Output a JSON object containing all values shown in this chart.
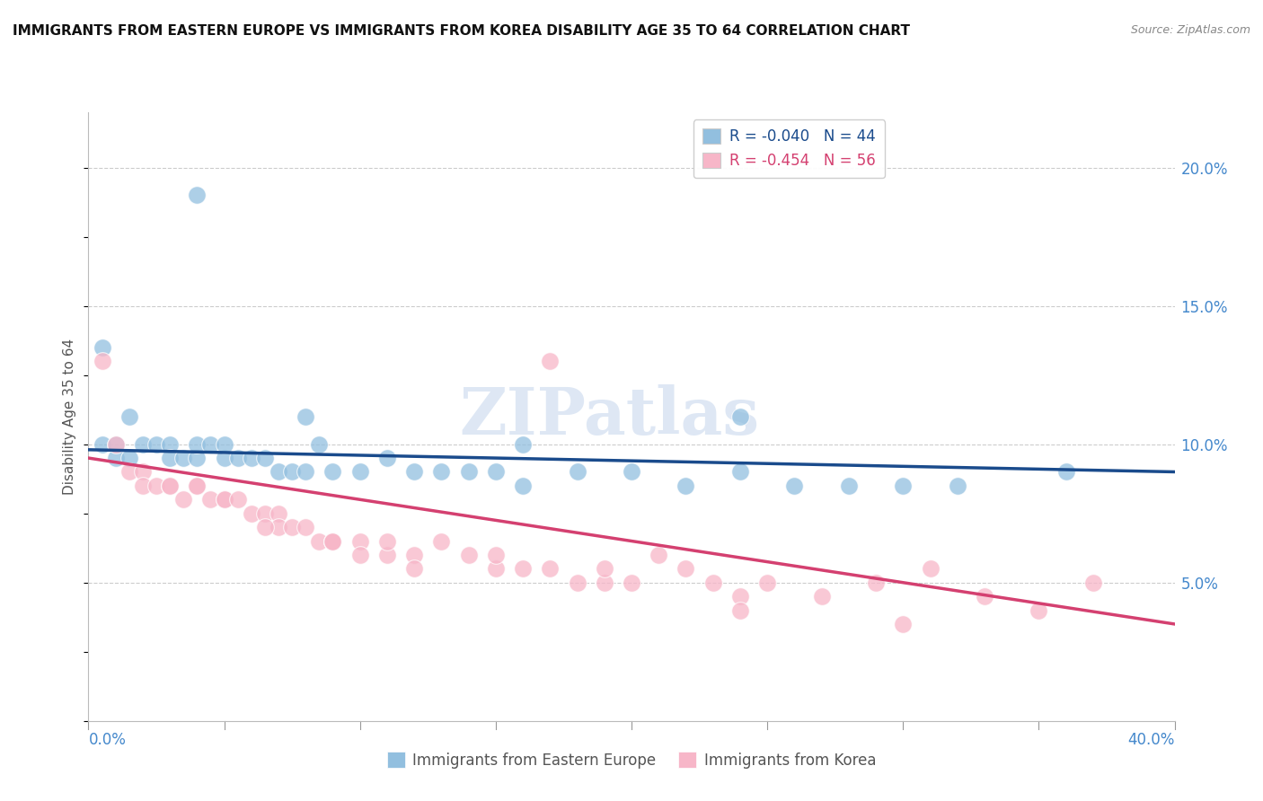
{
  "title": "IMMIGRANTS FROM EASTERN EUROPE VS IMMIGRANTS FROM KOREA DISABILITY AGE 35 TO 64 CORRELATION CHART",
  "source_text": "Source: ZipAtlas.com",
  "ylabel": "Disability Age 35 to 64",
  "xlim": [
    0.0,
    0.4
  ],
  "ylim": [
    0.0,
    0.22
  ],
  "y_ticks": [
    0.05,
    0.1,
    0.15,
    0.2
  ],
  "y_tick_labels": [
    "5.0%",
    "10.0%",
    "15.0%",
    "20.0%"
  ],
  "legend_blue_label": "R = -0.040   N = 44",
  "legend_pink_label": "R = -0.454   N = 56",
  "legend_bottom_blue": "Immigrants from Eastern Europe",
  "legend_bottom_pink": "Immigrants from Korea",
  "blue_color": "#92bfdf",
  "pink_color": "#f7b6c8",
  "blue_line_color": "#1a4b8c",
  "pink_line_color": "#d44070",
  "blue_scatter_x": [
    0.005,
    0.005,
    0.01,
    0.01,
    0.015,
    0.015,
    0.02,
    0.025,
    0.03,
    0.03,
    0.035,
    0.04,
    0.04,
    0.045,
    0.05,
    0.05,
    0.055,
    0.06,
    0.065,
    0.07,
    0.075,
    0.08,
    0.085,
    0.09,
    0.1,
    0.11,
    0.12,
    0.13,
    0.14,
    0.15,
    0.16,
    0.18,
    0.2,
    0.22,
    0.24,
    0.26,
    0.28,
    0.3,
    0.32,
    0.36,
    0.24,
    0.16,
    0.08,
    0.04
  ],
  "blue_scatter_y": [
    0.135,
    0.1,
    0.1,
    0.095,
    0.11,
    0.095,
    0.1,
    0.1,
    0.1,
    0.095,
    0.095,
    0.095,
    0.1,
    0.1,
    0.095,
    0.1,
    0.095,
    0.095,
    0.095,
    0.09,
    0.09,
    0.09,
    0.1,
    0.09,
    0.09,
    0.095,
    0.09,
    0.09,
    0.09,
    0.09,
    0.085,
    0.09,
    0.09,
    0.085,
    0.09,
    0.085,
    0.085,
    0.085,
    0.085,
    0.09,
    0.11,
    0.1,
    0.11,
    0.19
  ],
  "pink_scatter_x": [
    0.005,
    0.01,
    0.015,
    0.02,
    0.02,
    0.025,
    0.03,
    0.03,
    0.035,
    0.04,
    0.04,
    0.045,
    0.05,
    0.05,
    0.055,
    0.06,
    0.065,
    0.07,
    0.07,
    0.075,
    0.08,
    0.085,
    0.09,
    0.09,
    0.1,
    0.1,
    0.11,
    0.11,
    0.12,
    0.13,
    0.14,
    0.15,
    0.16,
    0.17,
    0.18,
    0.19,
    0.2,
    0.21,
    0.22,
    0.23,
    0.24,
    0.25,
    0.27,
    0.29,
    0.31,
    0.33,
    0.35,
    0.37,
    0.17,
    0.09,
    0.065,
    0.12,
    0.15,
    0.19,
    0.24,
    0.3
  ],
  "pink_scatter_y": [
    0.13,
    0.1,
    0.09,
    0.09,
    0.085,
    0.085,
    0.085,
    0.085,
    0.08,
    0.085,
    0.085,
    0.08,
    0.08,
    0.08,
    0.08,
    0.075,
    0.075,
    0.075,
    0.07,
    0.07,
    0.07,
    0.065,
    0.065,
    0.065,
    0.065,
    0.06,
    0.06,
    0.065,
    0.06,
    0.065,
    0.06,
    0.055,
    0.055,
    0.055,
    0.05,
    0.05,
    0.05,
    0.06,
    0.055,
    0.05,
    0.045,
    0.05,
    0.045,
    0.05,
    0.055,
    0.045,
    0.04,
    0.05,
    0.13,
    0.065,
    0.07,
    0.055,
    0.06,
    0.055,
    0.04,
    0.035
  ],
  "blue_trend_x": [
    0.0,
    0.4
  ],
  "blue_trend_y": [
    0.098,
    0.09
  ],
  "pink_trend_x": [
    0.0,
    0.4
  ],
  "pink_trend_y": [
    0.095,
    0.035
  ],
  "watermark": "ZIPatlas",
  "background_color": "#ffffff",
  "grid_color": "#cccccc"
}
